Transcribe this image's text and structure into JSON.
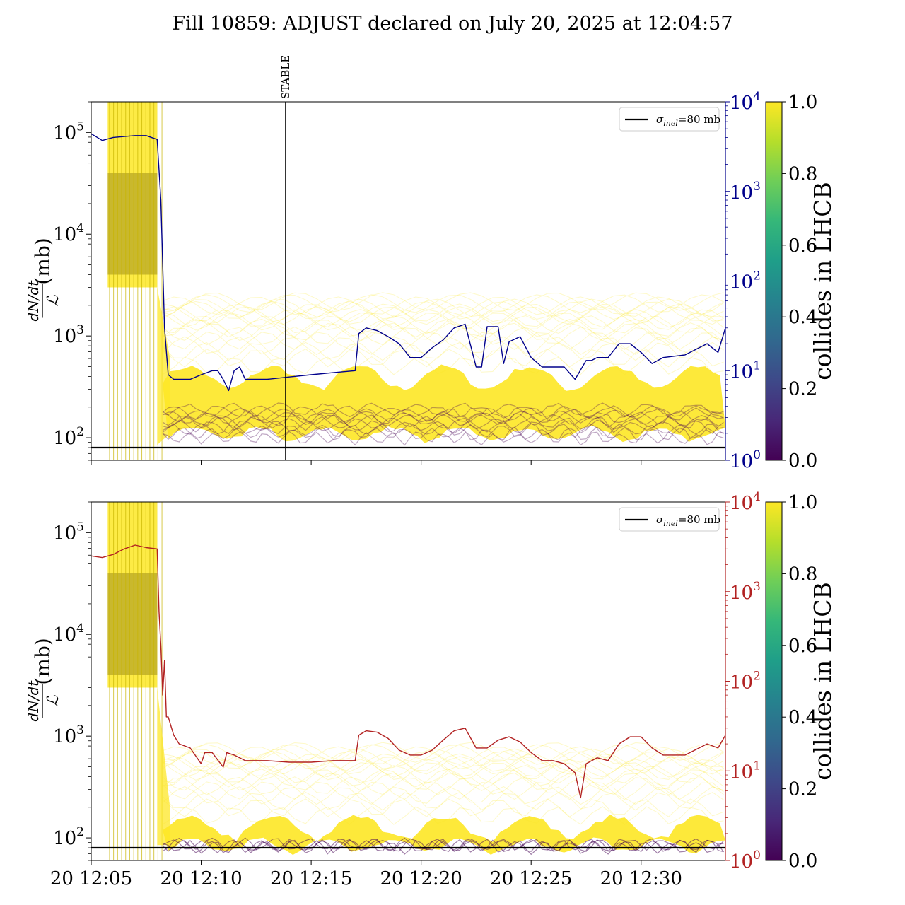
{
  "figure": {
    "title": "Fill 10859: ADJUST declared on July 20, 2025 at 12:04:57"
  },
  "colors": {
    "top_right_axis": "#00008b",
    "bottom_right_axis": "#b22222",
    "reference_line": "#000000",
    "bundle_yellow": "#fde725",
    "bundle_dark": "#440154"
  },
  "chart_data": [
    {
      "type": "line",
      "panel": "top",
      "ylabel_left": "dN/dt / ℒ (mb)",
      "ylabel_left_parts": {
        "numerator": "dN/dt",
        "denominator": "ℒ",
        "unit": "(mb)"
      },
      "yscale_left": "log",
      "ylim_left": [
        60,
        200000
      ],
      "yticks_left": [
        {
          "base": "10",
          "exp": "2",
          "value": 100
        },
        {
          "base": "10",
          "exp": "3",
          "value": 1000
        },
        {
          "base": "10",
          "exp": "4",
          "value": 10000
        },
        {
          "base": "10",
          "exp": "5",
          "value": 100000
        }
      ],
      "yscale_right": "log",
      "ylim_right": [
        1,
        10000
      ],
      "yticks_right": [
        {
          "base": "10",
          "exp": "0",
          "value": 1
        },
        {
          "base": "10",
          "exp": "1",
          "value": 10
        },
        {
          "base": "10",
          "exp": "2",
          "value": 100
        },
        {
          "base": "10",
          "exp": "3",
          "value": 1000
        },
        {
          "base": "10",
          "exp": "4",
          "value": 10000
        }
      ],
      "xlim": [
        "2025-07-20 12:05:00",
        "2025-07-20 12:33:50"
      ],
      "xticks": [
        "2025-07-20 12:05",
        "2025-07-20 12:10",
        "2025-07-20 12:15",
        "2025-07-20 12:20",
        "2025-07-20 12:25",
        "2025-07-20 12:30"
      ],
      "xtick_labels_shown": false,
      "reference_line": {
        "value": 80,
        "legend": {
          "symbol": "σ",
          "subscript": "inel",
          "suffix": "=80 mb"
        }
      },
      "legend_location": "top-right",
      "vertical_marker": {
        "x": "2025-07-20 12:13:50",
        "label": "STABLE"
      },
      "colorbar": {
        "label": "collides in LHCB",
        "range": [
          0.0,
          1.0
        ],
        "ticks": [
          "0.0",
          "0.2",
          "0.4",
          "0.6",
          "0.8",
          "1.0"
        ]
      },
      "series": [
        {
          "color": "#00008b",
          "axis": "right",
          "x": [
            "12:05:00",
            "12:05:30",
            "12:06:00",
            "12:06:30",
            "12:07:00",
            "12:07:30",
            "12:08:00",
            "12:08:10",
            "12:08:20",
            "12:08:30",
            "12:08:45",
            "12:09:00",
            "12:09:30",
            "12:10:00",
            "12:10:30",
            "12:10:45",
            "12:11:00",
            "12:11:15",
            "12:11:30",
            "12:11:45",
            "12:12:00",
            "12:13:00",
            "12:14:00",
            "12:15:00",
            "12:16:00",
            "12:17:00",
            "12:17:10",
            "12:17:30",
            "12:18:00",
            "12:18:30",
            "12:19:00",
            "12:19:30",
            "12:20:00",
            "12:20:30",
            "12:21:00",
            "12:21:30",
            "12:22:00",
            "12:22:30",
            "12:22:45",
            "12:23:00",
            "12:23:30",
            "12:23:45",
            "12:24:00",
            "12:24:30",
            "12:25:00",
            "12:25:30",
            "12:26:00",
            "12:26:30",
            "12:27:00",
            "12:27:30",
            "12:27:45",
            "12:28:00",
            "12:28:30",
            "12:29:00",
            "12:29:30",
            "12:30:00",
            "12:30:30",
            "12:31:00",
            "12:32:00",
            "12:33:00",
            "12:33:30",
            "12:33:50"
          ],
          "y": [
            4400,
            3700,
            4000,
            4100,
            4200,
            4200,
            3800,
            800,
            30,
            9,
            8,
            8,
            8,
            9,
            10,
            10,
            8,
            6,
            10,
            11,
            8,
            8,
            8.5,
            9,
            9.5,
            10,
            26,
            30,
            28,
            24,
            20,
            14,
            14,
            18,
            22,
            30,
            33,
            11,
            11,
            31,
            31,
            12,
            21,
            24,
            14,
            11,
            11,
            11,
            8,
            13,
            13,
            14,
            14,
            20,
            20,
            16,
            12,
            14,
            15,
            20,
            16,
            30
          ]
        }
      ]
    },
    {
      "type": "line",
      "panel": "bottom",
      "ylabel_left": "dN/dt / ℒ (mb)",
      "ylabel_left_parts": {
        "numerator": "dN/dt",
        "denominator": "ℒ",
        "unit": "(mb)"
      },
      "yscale_left": "log",
      "ylim_left": [
        60,
        200000
      ],
      "yticks_left": [
        {
          "base": "10",
          "exp": "2",
          "value": 100
        },
        {
          "base": "10",
          "exp": "3",
          "value": 1000
        },
        {
          "base": "10",
          "exp": "4",
          "value": 10000
        },
        {
          "base": "10",
          "exp": "5",
          "value": 100000
        }
      ],
      "yscale_right": "log",
      "ylim_right": [
        1,
        10000
      ],
      "yticks_right": [
        {
          "base": "10",
          "exp": "0",
          "value": 1
        },
        {
          "base": "10",
          "exp": "1",
          "value": 10
        },
        {
          "base": "10",
          "exp": "2",
          "value": 100
        },
        {
          "base": "10",
          "exp": "3",
          "value": 1000
        },
        {
          "base": "10",
          "exp": "4",
          "value": 10000
        }
      ],
      "xlim": [
        "2025-07-20 12:05:00",
        "2025-07-20 12:33:50"
      ],
      "xticks": [
        "2025-07-20 12:05",
        "2025-07-20 12:10",
        "2025-07-20 12:15",
        "2025-07-20 12:20",
        "2025-07-20 12:25",
        "2025-07-20 12:30"
      ],
      "xtick_labels": [
        "20 12:05",
        "20 12:10",
        "20 12:15",
        "20 12:20",
        "20 12:25",
        "20 12:30"
      ],
      "reference_line": {
        "value": 80,
        "legend": {
          "symbol": "σ",
          "subscript": "inel",
          "suffix": "=80 mb"
        }
      },
      "legend_location": "top-right",
      "colorbar": {
        "label": "collides in LHCB",
        "range": [
          0.0,
          1.0
        ],
        "ticks": [
          "0.0",
          "0.2",
          "0.4",
          "0.6",
          "0.8",
          "1.0"
        ]
      },
      "series": [
        {
          "color": "#b22222",
          "axis": "right",
          "x": [
            "12:05:00",
            "12:05:30",
            "12:06:00",
            "12:06:30",
            "12:07:00",
            "12:07:30",
            "12:08:00",
            "12:08:05",
            "12:08:10",
            "12:08:15",
            "12:08:20",
            "12:08:25",
            "12:08:30",
            "12:08:45",
            "12:09:00",
            "12:09:30",
            "12:10:00",
            "12:10:10",
            "12:10:30",
            "12:11:00",
            "12:11:10",
            "12:11:30",
            "12:12:00",
            "12:13:00",
            "12:14:00",
            "12:15:00",
            "12:16:00",
            "12:17:00",
            "12:17:10",
            "12:17:30",
            "12:18:00",
            "12:18:30",
            "12:19:00",
            "12:19:30",
            "12:20:00",
            "12:20:30",
            "12:21:00",
            "12:21:30",
            "12:22:00",
            "12:22:30",
            "12:23:00",
            "12:23:30",
            "12:24:00",
            "12:24:30",
            "12:25:00",
            "12:25:30",
            "12:26:00",
            "12:26:30",
            "12:27:00",
            "12:27:15",
            "12:27:30",
            "12:28:00",
            "12:28:30",
            "12:29:00",
            "12:29:30",
            "12:30:00",
            "12:30:30",
            "12:31:00",
            "12:32:00",
            "12:33:00",
            "12:33:30",
            "12:33:50"
          ],
          "y": [
            2500,
            2400,
            2600,
            3000,
            3300,
            3100,
            3000,
            600,
            250,
            70,
            170,
            40,
            40,
            25,
            20,
            18,
            12,
            16,
            16,
            11,
            16,
            15,
            13,
            13,
            12.5,
            12.5,
            13,
            13,
            25,
            28,
            27,
            23,
            17,
            15,
            15,
            17,
            22,
            28,
            30,
            18,
            18,
            22,
            24,
            21,
            16,
            13,
            13,
            12,
            9.5,
            5,
            12,
            14,
            13,
            20,
            24,
            24,
            18,
            15,
            15,
            20,
            18,
            25
          ]
        }
      ]
    }
  ]
}
